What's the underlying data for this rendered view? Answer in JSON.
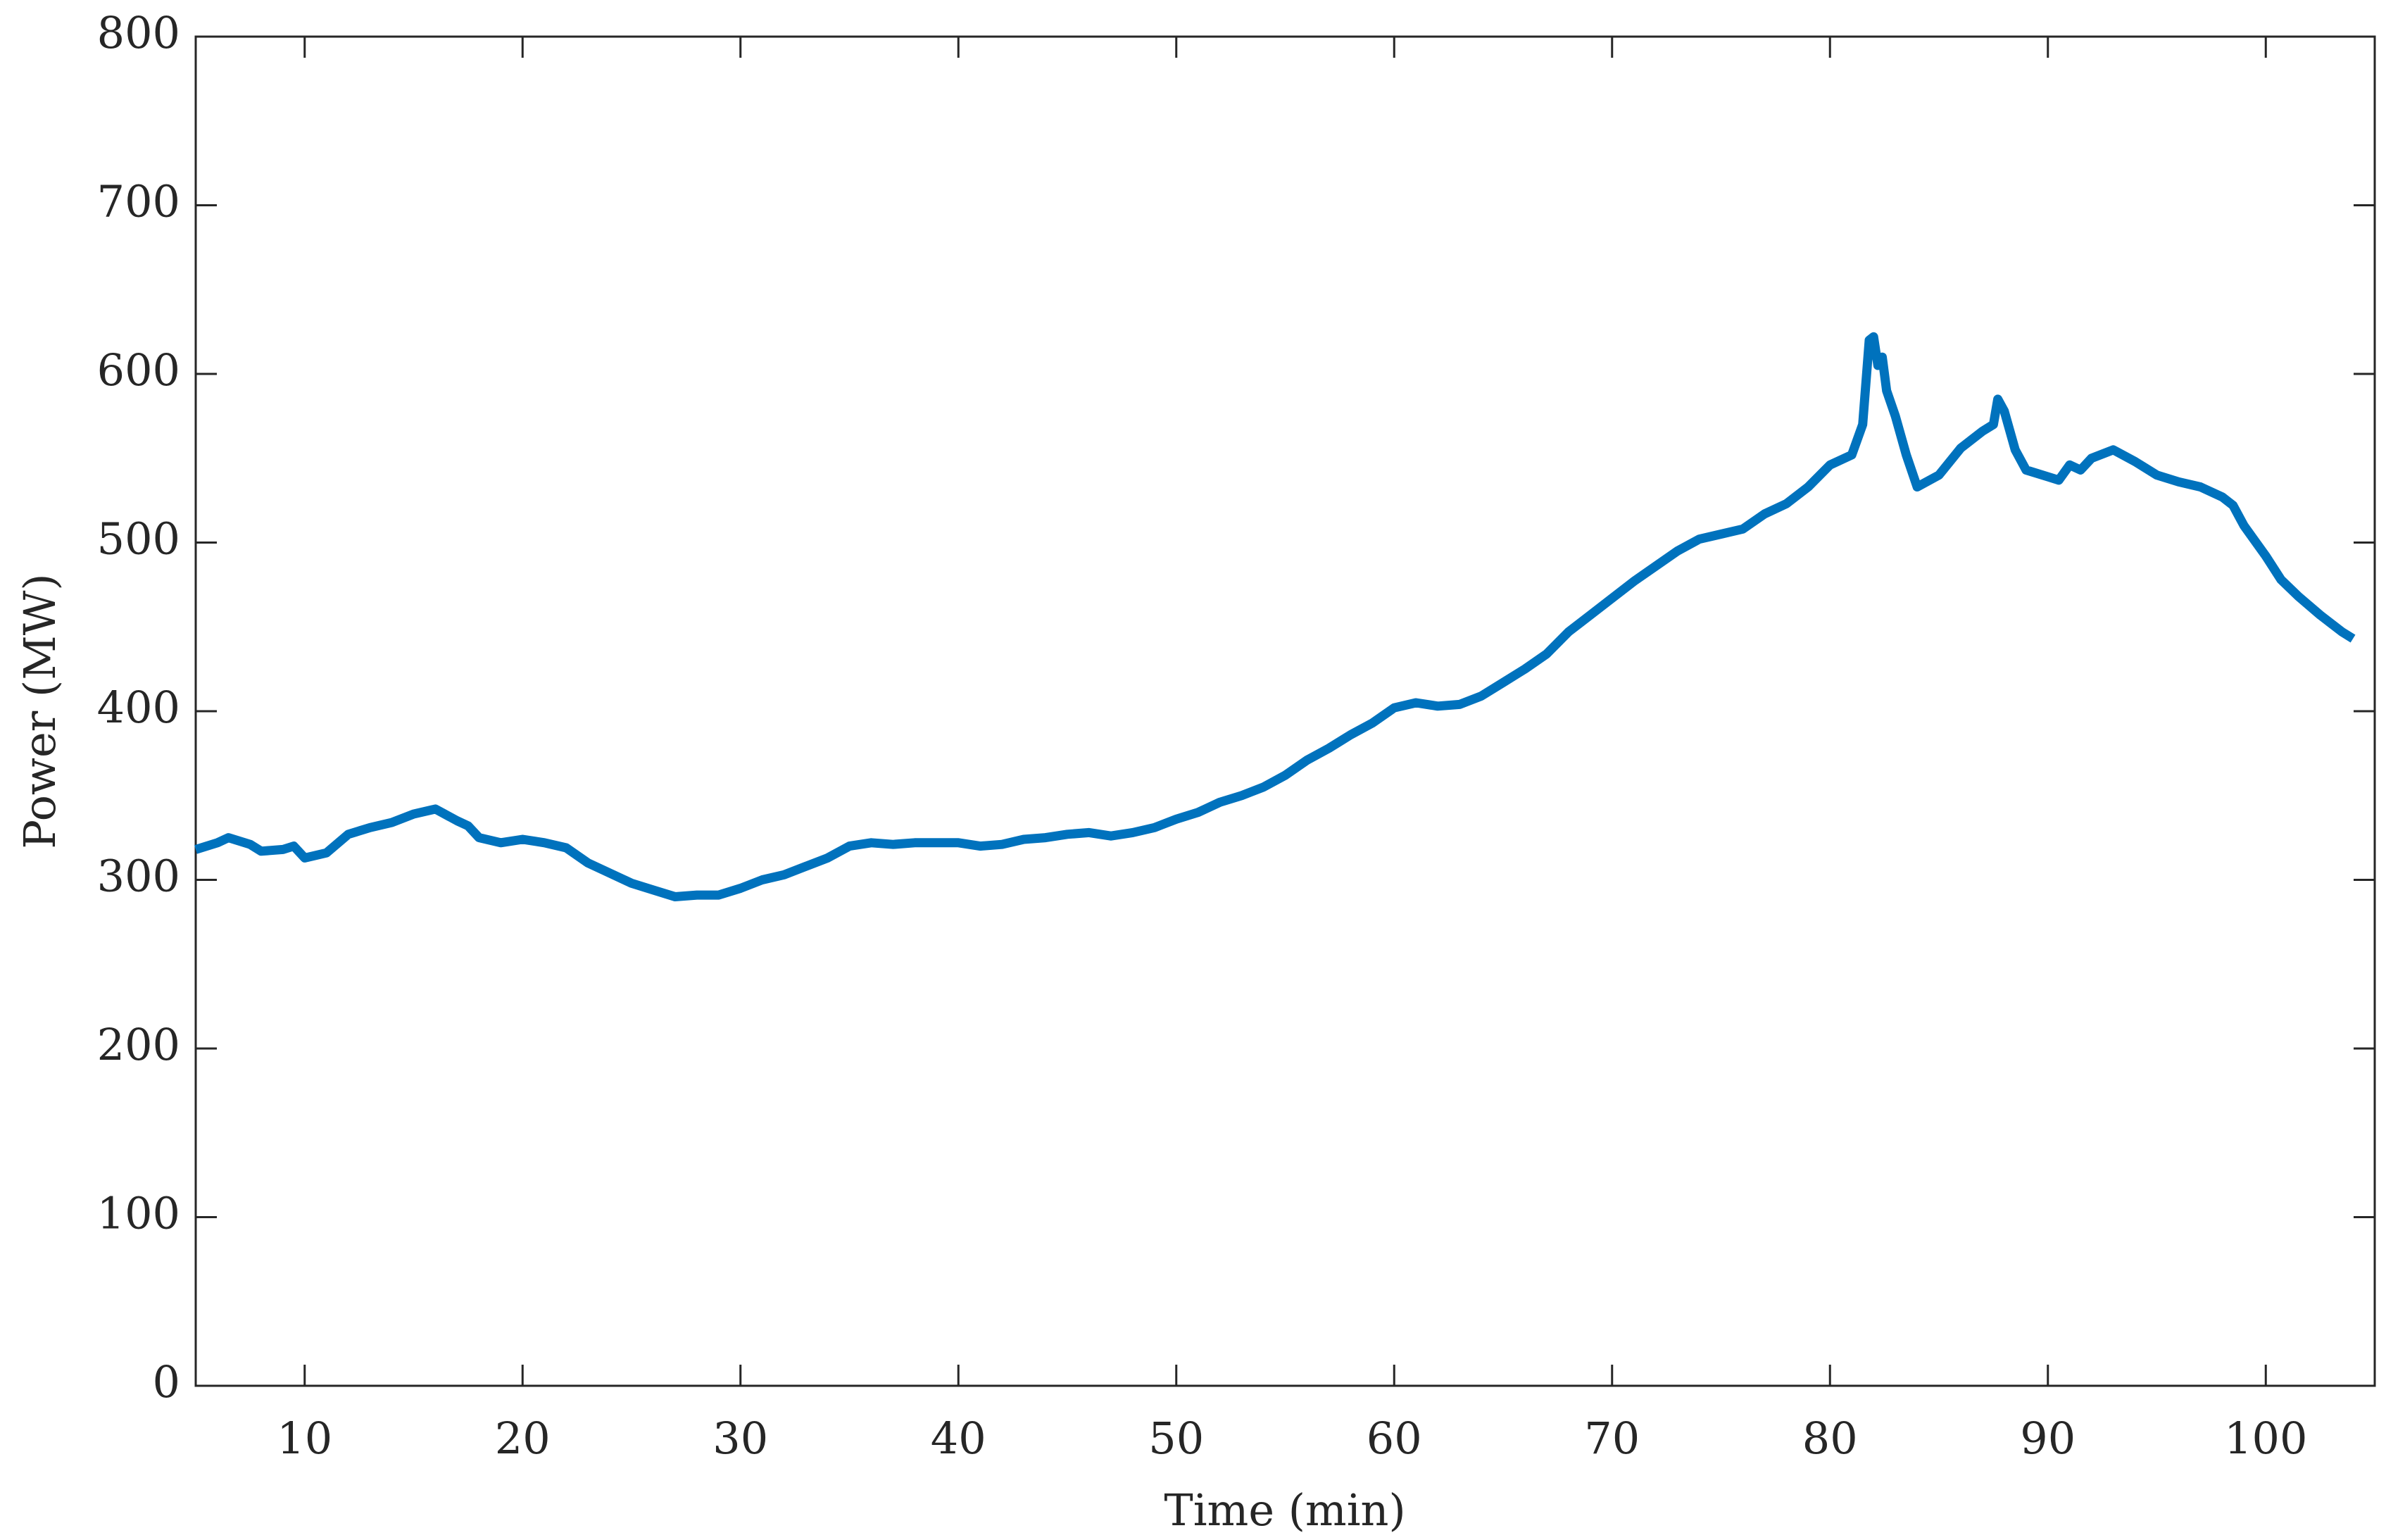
{
  "chart_data": {
    "type": "line",
    "xlabel": "Time (min)",
    "ylabel": "Power (MW)",
    "xlim": [
      5,
      105
    ],
    "ylim": [
      0,
      800
    ],
    "xticks": [
      10,
      20,
      30,
      40,
      50,
      60,
      70,
      80,
      90,
      100
    ],
    "yticks": [
      0,
      100,
      200,
      300,
      400,
      500,
      600,
      700,
      800
    ],
    "series": [
      {
        "name": "Power",
        "color": "#0072bd",
        "x": [
          5,
          6,
          6.5,
          7.5,
          8,
          9,
          9.5,
          10,
          11,
          12,
          13,
          14,
          15,
          16,
          17,
          17.5,
          18,
          19,
          20,
          21,
          22,
          23,
          24,
          25,
          26,
          27,
          28,
          29,
          30,
          31,
          32,
          33,
          34,
          35,
          36,
          37,
          38,
          39,
          40,
          41,
          42,
          43,
          44,
          45,
          46,
          47,
          48,
          49,
          50,
          51,
          52,
          53,
          54,
          55,
          56,
          57,
          58,
          59,
          60,
          61,
          62,
          63,
          64,
          65,
          66,
          67,
          68,
          69,
          70,
          71,
          72,
          73,
          74,
          75,
          76,
          77,
          78,
          79,
          80,
          81,
          81.5,
          81.8,
          82,
          82.2,
          82.4,
          82.6,
          83,
          83.5,
          84,
          85,
          86,
          87,
          87.5,
          87.7,
          88,
          88.5,
          89,
          90,
          90.5,
          91,
          91.5,
          92,
          93,
          94,
          95,
          96,
          97,
          98,
          98.5,
          99,
          100,
          100.7,
          101.5,
          102.5,
          103.5,
          104
        ],
        "values": [
          318,
          322,
          325,
          321,
          317,
          318,
          320,
          313,
          316,
          327,
          331,
          334,
          339,
          342,
          335,
          332,
          325,
          322,
          324,
          322,
          319,
          310,
          304,
          298,
          294,
          290,
          291,
          291,
          295,
          300,
          303,
          308,
          313,
          320,
          322,
          321,
          322,
          322,
          322,
          320,
          321,
          324,
          325,
          327,
          328,
          326,
          328,
          331,
          336,
          340,
          346,
          350,
          355,
          362,
          371,
          378,
          386,
          393,
          402,
          405,
          403,
          404,
          409,
          417,
          425,
          434,
          447,
          457,
          467,
          477,
          486,
          495,
          502,
          505,
          508,
          517,
          523,
          533,
          546,
          552,
          570,
          620,
          622,
          605,
          610,
          590,
          575,
          552,
          533,
          540,
          556,
          566,
          570,
          585,
          578,
          555,
          543,
          539,
          537,
          546,
          543,
          550,
          555,
          548,
          540,
          536,
          533,
          527,
          522,
          510,
          492,
          478,
          468,
          457,
          447,
          443
        ]
      }
    ]
  }
}
